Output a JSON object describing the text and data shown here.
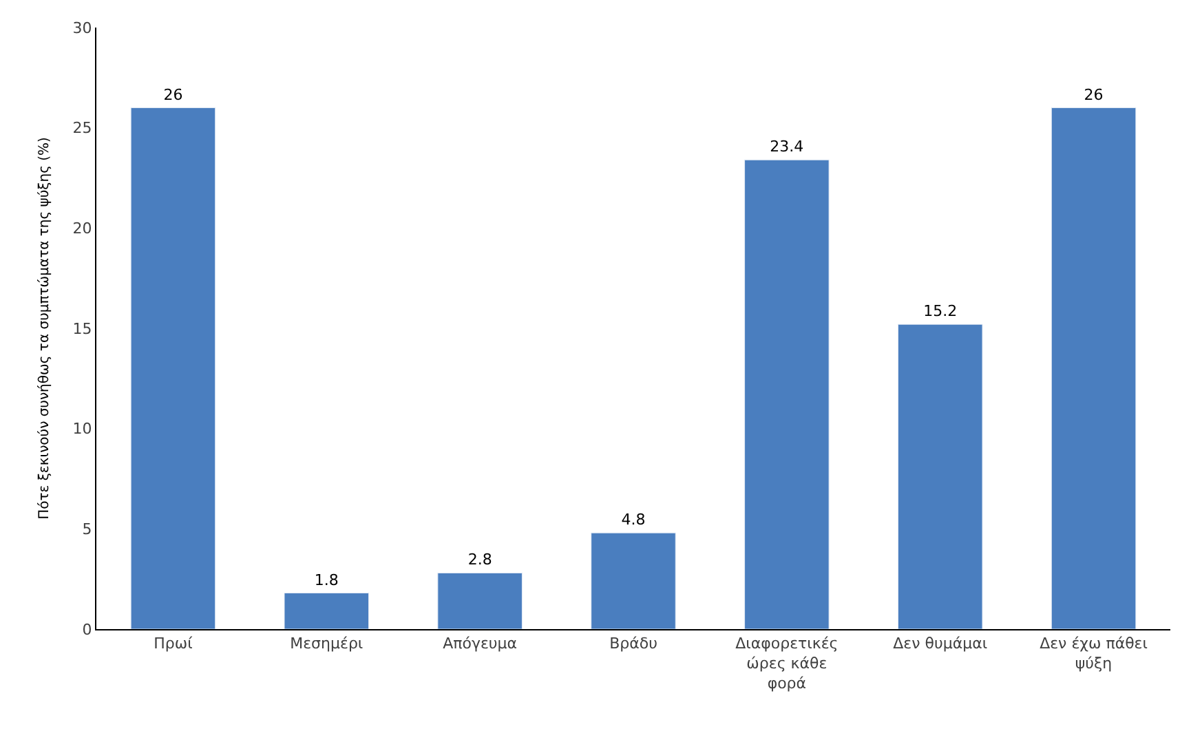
{
  "chart_data": {
    "type": "bar",
    "ylabel": "Πότε ξεκινούν συνήθως τα συμπτώματα της ψύξης (%)",
    "categories": [
      "Πρωί",
      "Μεσημέρι",
      "Απόγευμα",
      "Βράδυ",
      "Διαφορετικές ώρες κάθε φορά",
      "Δεν θυμάμαι",
      "Δεν έχω πάθει ψύξη"
    ],
    "values": [
      26,
      1.8,
      2.8,
      4.8,
      23.4,
      15.2,
      26
    ],
    "color": "#4a7ebf",
    "ylim": [
      0,
      30
    ],
    "yticks": [
      0,
      5,
      10,
      15,
      20,
      25,
      30
    ],
    "data_labels": true
  }
}
